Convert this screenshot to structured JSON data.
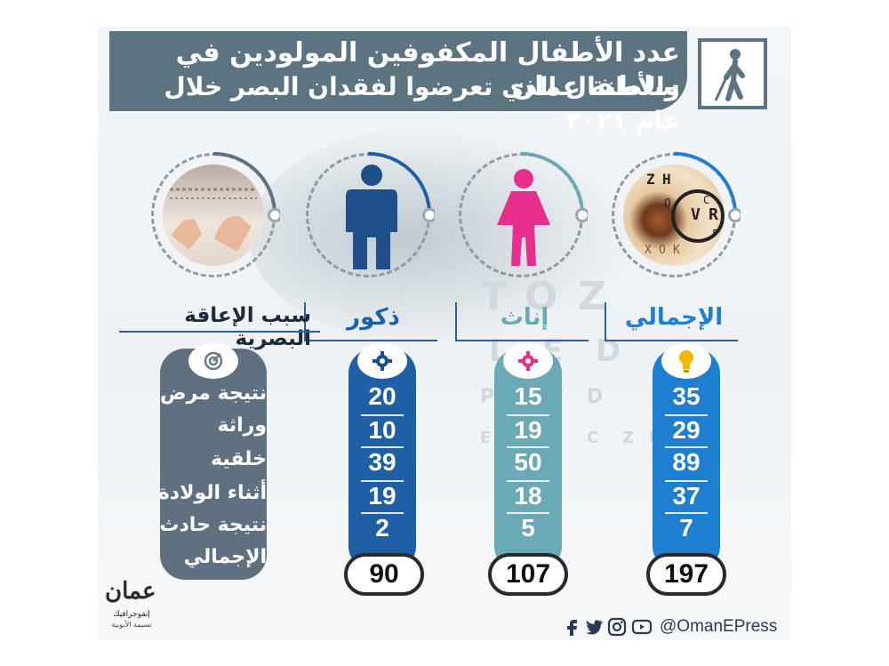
{
  "title": {
    "line1": "عدد الأطفال المكفوفين المولودين في سلطنة عمان",
    "line2": "والأطفال الذي تعرضوا لفقدان البصر خلال عام ٢٠٢١"
  },
  "columns": {
    "total": {
      "label": "الإجمالي",
      "total": "197",
      "values": [
        "35",
        "29",
        "89",
        "37",
        "7"
      ],
      "color": "#1e7fd0"
    },
    "female": {
      "label": "إناث",
      "total": "107",
      "values": [
        "15",
        "19",
        "50",
        "18",
        "5"
      ],
      "color": "#6aa9b6"
    },
    "male": {
      "label": "ذكور",
      "total": "90",
      "values": [
        "20",
        "10",
        "39",
        "19",
        "2"
      ],
      "color": "#1f5fa6"
    }
  },
  "reasons": {
    "heading": "سبب الإعاقة البصرية",
    "items": [
      "نتيجة مرض",
      "وراثة",
      "خلقية",
      "أثناء الولادة",
      "نتيجة حادث",
      "الإجمالي"
    ]
  },
  "eye_chart_letters": [
    "Z",
    "H",
    "O",
    "V",
    "R",
    "C",
    "F",
    "X",
    "O",
    "K",
    "T",
    "O",
    "Z",
    "L",
    "E",
    "D",
    "P",
    "C",
    "F",
    "D",
    "E",
    "D",
    "F",
    "C",
    "Z",
    "P"
  ],
  "footer": {
    "handle": "@OmanEPress"
  },
  "logo": {
    "main": "عمان",
    "sub1": "إنفوجرافيك",
    "sub2": "نسيمة الأيوبية"
  },
  "icons": [
    "blind-person-icon",
    "eye-chart-icon",
    "female-icon",
    "male-icon",
    "braille-hands-icon",
    "lightbulb-icon",
    "gear-icon",
    "target-icon",
    "facebook-icon",
    "twitter-icon",
    "instagram-icon",
    "youtube-icon"
  ],
  "colors": {
    "banner": "#5c7482",
    "total": "#1e7fd0",
    "female": "#6aa9b6",
    "male": "#1f5fa6",
    "reasons": "#5f7081",
    "female_figure": "#e62e8c",
    "male_figure": "#1f4f8a",
    "bulb": "#f2b705"
  }
}
